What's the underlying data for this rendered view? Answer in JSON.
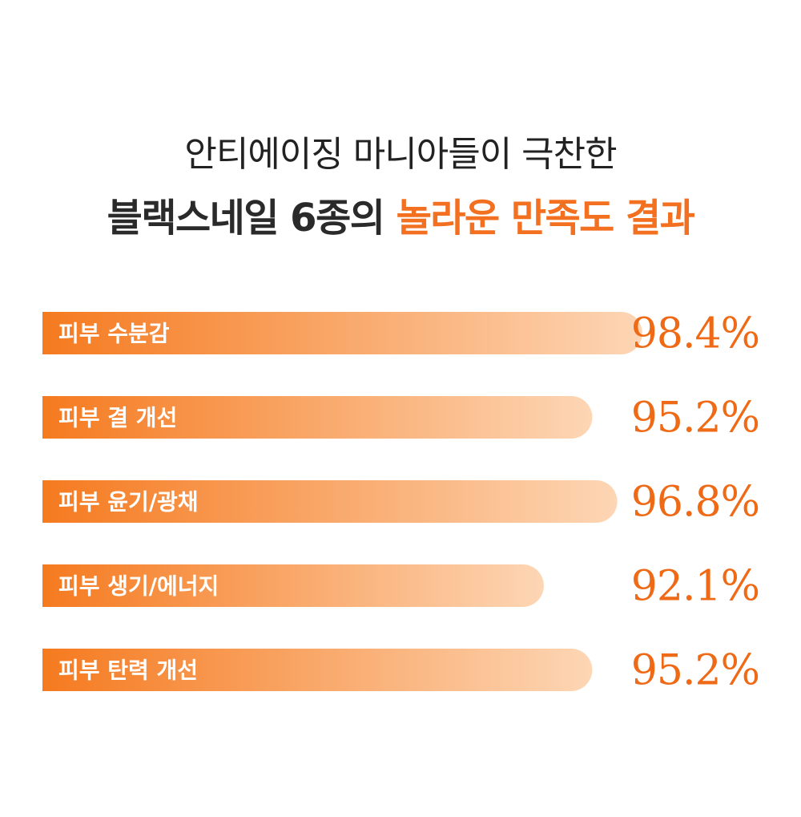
{
  "header": {
    "line1": "안티에이징 마니아들이 극찬한",
    "line2_dark": "블랙스네일 6종의 ",
    "line2_accent": "놀라운 만족도 결과"
  },
  "colors": {
    "accent": "#f37021",
    "bar_start": "#f57a1f",
    "bar_end": "#fdd6b5",
    "value_text": "#ef6a16",
    "title_text": "#222222"
  },
  "chart_data": {
    "type": "bar",
    "orientation": "horizontal",
    "categories": [
      "피부 수분감",
      "피부 결 개선",
      "피부 윤기/광채",
      "피부 생기/에너지",
      "피부 탄력 개선"
    ],
    "values": [
      98.4,
      95.2,
      96.8,
      92.1,
      95.2
    ],
    "value_labels": [
      "98.4%",
      "95.2%",
      "96.8%",
      "92.1%",
      "95.2%"
    ],
    "title": "",
    "xlabel": "",
    "ylabel": "",
    "grid": false,
    "legend": "none"
  }
}
